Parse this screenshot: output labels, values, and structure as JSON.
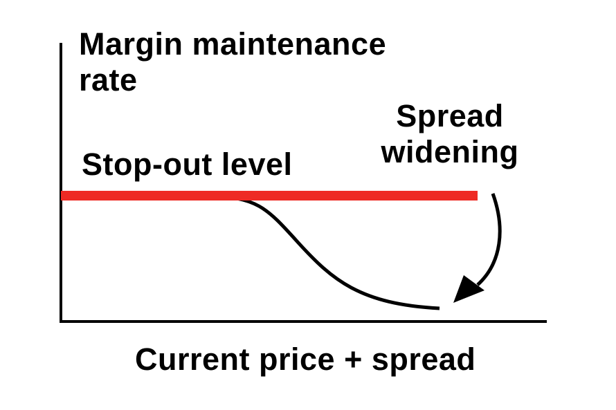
{
  "labels": {
    "y_axis": "Margin maintenance rate",
    "y_axis_line1": "Margin maintenance",
    "y_axis_line2": "rate",
    "x_axis": "Current price + spread",
    "stop_out": "Stop-out level",
    "spread_line1": "Spread",
    "spread_line2": "widening"
  },
  "colors": {
    "stop_out_line": "#ee2a24",
    "curve": "#000000",
    "axes": "#000000"
  }
}
